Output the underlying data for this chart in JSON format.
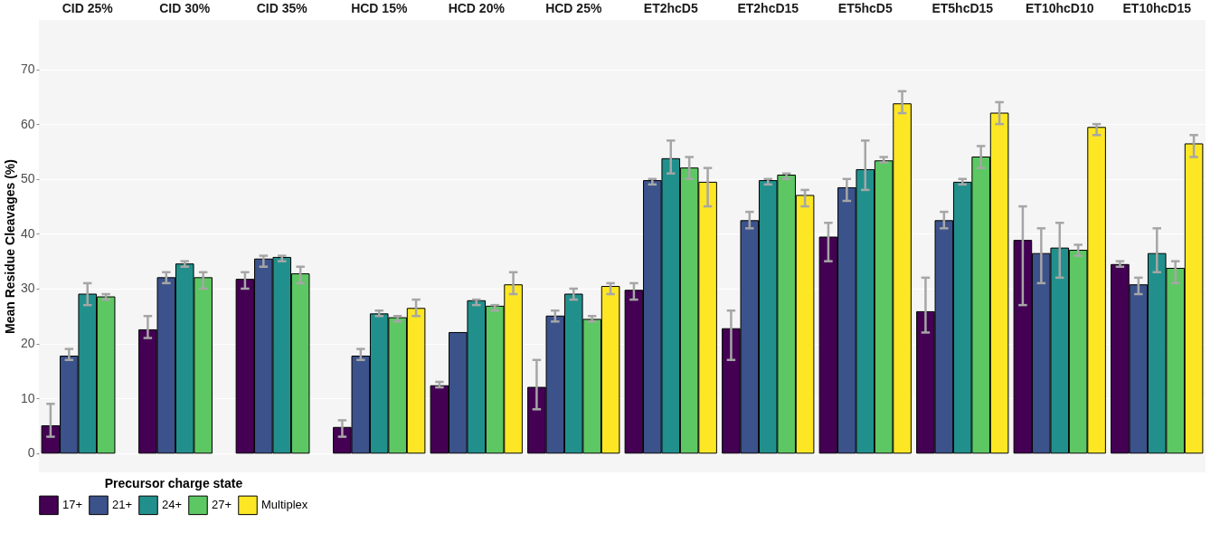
{
  "chart_data": {
    "type": "bar",
    "ylabel": "Mean Residue Cleavages (%)",
    "legend_title": "Precursor charge state",
    "legend": "bottom",
    "grid": "y",
    "categories": [
      "CID 25%",
      "CID 30%",
      "CID 35%",
      "HCD 15%",
      "HCD 20%",
      "HCD 25%",
      "ET2hcD5",
      "ET2hcD15",
      "ET5hcD5",
      "ET5hcD15",
      "ET10hcD10",
      "ET10hcD15"
    ],
    "ylim": [
      -3.5,
      79
    ],
    "yticks": [
      0,
      10,
      20,
      30,
      40,
      50,
      60,
      70
    ],
    "series": [
      {
        "name": "17+",
        "color": "#440154",
        "values": [
          5,
          22.5,
          31.7,
          4.7,
          12.3,
          12,
          29.7,
          22.7,
          39.4,
          25.8,
          38.8,
          34.4
        ],
        "errors": [
          [
            3,
            9
          ],
          [
            21,
            25
          ],
          [
            30,
            33
          ],
          [
            3,
            6
          ],
          [
            12,
            13
          ],
          [
            8,
            17
          ],
          [
            28,
            31
          ],
          [
            17,
            26
          ],
          [
            35,
            42
          ],
          [
            22,
            32
          ],
          [
            27,
            45
          ],
          [
            34,
            35
          ]
        ]
      },
      {
        "name": "21+",
        "color": "#3b528b",
        "values": [
          17.7,
          32,
          35.4,
          17.7,
          22,
          25,
          49.7,
          42.4,
          48.4,
          42.4,
          36.4,
          30.7
        ],
        "errors": [
          [
            17,
            19
          ],
          [
            31,
            33
          ],
          [
            34,
            36
          ],
          [
            17,
            19
          ],
          null,
          [
            24,
            26
          ],
          [
            49,
            50
          ],
          [
            41,
            44
          ],
          [
            46,
            50
          ],
          [
            41,
            44
          ],
          [
            31,
            41
          ],
          [
            29,
            32
          ]
        ]
      },
      {
        "name": "24+",
        "color": "#21908c",
        "values": [
          29,
          34.5,
          35.7,
          25.4,
          27.8,
          29,
          53.7,
          49.7,
          51.7,
          49.4,
          37.4,
          36.4
        ],
        "errors": [
          [
            27,
            31
          ],
          [
            34,
            35
          ],
          [
            35,
            36
          ],
          [
            25,
            26
          ],
          [
            27,
            28
          ],
          [
            28,
            30
          ],
          [
            51,
            57
          ],
          [
            49,
            50
          ],
          [
            48,
            57
          ],
          [
            49,
            50
          ],
          [
            32,
            42
          ],
          [
            33,
            41
          ]
        ]
      },
      {
        "name": "27+",
        "color": "#5dc863",
        "values": [
          28.5,
          32,
          32.7,
          24.7,
          26.8,
          24.4,
          52,
          50.7,
          53.3,
          54,
          37,
          33.7
        ],
        "errors": [
          [
            28,
            29
          ],
          [
            30,
            33
          ],
          [
            31,
            34
          ],
          [
            24,
            25
          ],
          [
            26,
            27
          ],
          [
            24,
            25
          ],
          [
            50,
            54
          ],
          [
            50,
            51
          ],
          [
            53,
            54
          ],
          [
            52,
            56
          ],
          [
            36,
            38
          ],
          [
            31,
            35
          ]
        ]
      },
      {
        "name": "Multiplex",
        "color": "#fde725",
        "values": [
          null,
          null,
          null,
          26.4,
          30.7,
          30.4,
          49.4,
          47,
          63.7,
          62,
          59.4,
          56.4
        ],
        "errors": [
          null,
          null,
          null,
          [
            25,
            28
          ],
          [
            29,
            33
          ],
          [
            29,
            31
          ],
          [
            45,
            52
          ],
          [
            45,
            48
          ],
          [
            62,
            66
          ],
          [
            60,
            64
          ],
          [
            58,
            60
          ],
          [
            54,
            58
          ]
        ]
      }
    ]
  }
}
